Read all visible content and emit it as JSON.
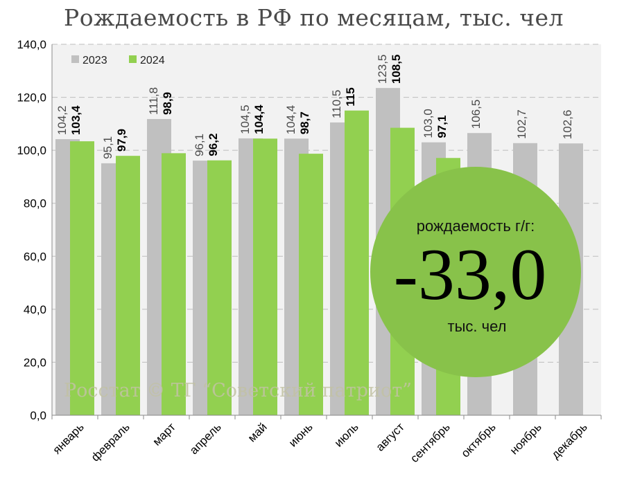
{
  "title": "Рождаемость в РФ по месяцам, тыс. чел",
  "colors": {
    "series_2023": "#c0c0c0",
    "series_2024": "#92d050",
    "circle": "#88c24a",
    "plot_bg": "#f2f2f2"
  },
  "watermark": "Росстат © ТГ “Советский патриот”",
  "callout": {
    "caption": "рождаемость г/г:",
    "value": "-33,0",
    "unit": "тыс. чел"
  },
  "chart_data": {
    "type": "bar",
    "categories": [
      "январь",
      "февраль",
      "март",
      "апрель",
      "май",
      "июнь",
      "июль",
      "август",
      "сентябрь",
      "октябрь",
      "ноябрь",
      "декабрь"
    ],
    "series": [
      {
        "name": "2023",
        "values": [
          104.2,
          95.1,
          111.8,
          96.1,
          104.5,
          104.4,
          110.5,
          123.5,
          103.0,
          106.5,
          102.7,
          102.6
        ],
        "labels": [
          "104,2",
          "95,1",
          "111,8",
          "96,1",
          "104,5",
          "104,4",
          "110,5",
          "123,5",
          "103,0",
          "106,5",
          "102,7",
          "102,6"
        ]
      },
      {
        "name": "2024",
        "values": [
          103.4,
          97.9,
          98.9,
          96.2,
          104.4,
          98.7,
          115,
          108.5,
          97.1,
          null,
          null,
          null
        ],
        "labels": [
          "103,4",
          "97,9",
          "98,9",
          "96,2",
          "104,4",
          "98,7",
          "115",
          "108,5",
          "97,1",
          null,
          null,
          null
        ]
      }
    ],
    "yticks": [
      "0,0",
      "20,0",
      "40,0",
      "60,0",
      "80,0",
      "100,0",
      "120,0",
      "140,0"
    ],
    "ylim": [
      0,
      140
    ],
    "legend_position": "top-left",
    "grid": true
  }
}
